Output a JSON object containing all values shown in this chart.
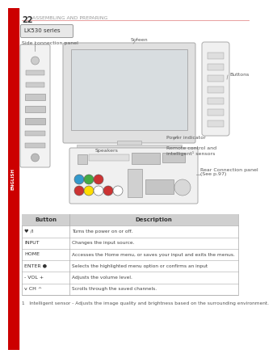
{
  "page_number": "22",
  "page_title": "ASSEMBLING AND PREPARING",
  "series_label": "LK530 series",
  "bg_color": "#ffffff",
  "header_line_color": "#e8a0a0",
  "sidebar_color": "#cc0000",
  "table_header_bg": "#d0d0d0",
  "table_border_color": "#aaaaaa",
  "table_col_split": 0.22,
  "table_header": [
    "Button",
    "Description"
  ],
  "table_rows": [
    [
      "♥ /I",
      "Turns the power on or off."
    ],
    [
      "INPUT",
      "Changes the input source."
    ],
    [
      "HOME",
      "Accesses the Home menu, or saves your input and exits the menus."
    ],
    [
      "ENTER ●",
      "Selects the highlighted menu option or confirms an input"
    ],
    [
      "- VOL +",
      "Adjusts the volume level."
    ],
    [
      "v CH ^",
      "Scrolls through the saved channels."
    ]
  ],
  "footnote": "1   Intelligent sensor - Adjusts the image quality and brightness based on the surrounding environment.",
  "labels": {
    "side_panel": "Side connection panel",
    "screen": "Screen",
    "buttons": "Buttons",
    "speakers": "Speakers",
    "power_indicator": "Power indicator",
    "remote_control": "Remote control and\nintelligent¹ sensors",
    "rear_panel": "Rear Connection panel\n(See p.97)"
  },
  "label_color": "#555555",
  "small_font": 4.5,
  "header_font": 5.0,
  "table_font": 4.5
}
